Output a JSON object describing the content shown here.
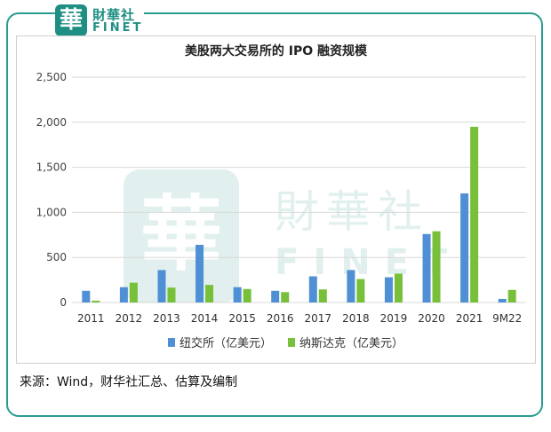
{
  "brand": {
    "logo_glyph": "華",
    "name_cn": "財華社",
    "name_en": "FINET",
    "color": "#1f8f83",
    "frame_color": "#2a9b8f"
  },
  "chart_data": {
    "type": "bar",
    "title": "美股两大交易所的 IPO 融资规模",
    "xlabel": "",
    "ylabel": "",
    "ylim": [
      0,
      2500
    ],
    "yticks": [
      0,
      500,
      1000,
      1500,
      2000,
      2500
    ],
    "ytick_labels": [
      "0",
      "500",
      "1,000",
      "1,500",
      "2,000",
      "2,500"
    ],
    "grid": true,
    "legend_position": "bottom",
    "categories": [
      "2011",
      "2012",
      "2013",
      "2014",
      "2015",
      "2016",
      "2017",
      "2018",
      "2019",
      "2020",
      "2021",
      "9M22"
    ],
    "series": [
      {
        "name": "纽交所（亿美元）",
        "color": "#4f8fd3",
        "values": [
          130,
          170,
          360,
          640,
          170,
          130,
          290,
          360,
          280,
          760,
          1210,
          40
        ]
      },
      {
        "name": "纳斯达克（亿美元）",
        "color": "#78c03a",
        "values": [
          20,
          220,
          165,
          195,
          150,
          115,
          145,
          260,
          320,
          790,
          1950,
          140
        ]
      }
    ]
  },
  "source": "来源：Wind，财华社汇总、估算及编制"
}
